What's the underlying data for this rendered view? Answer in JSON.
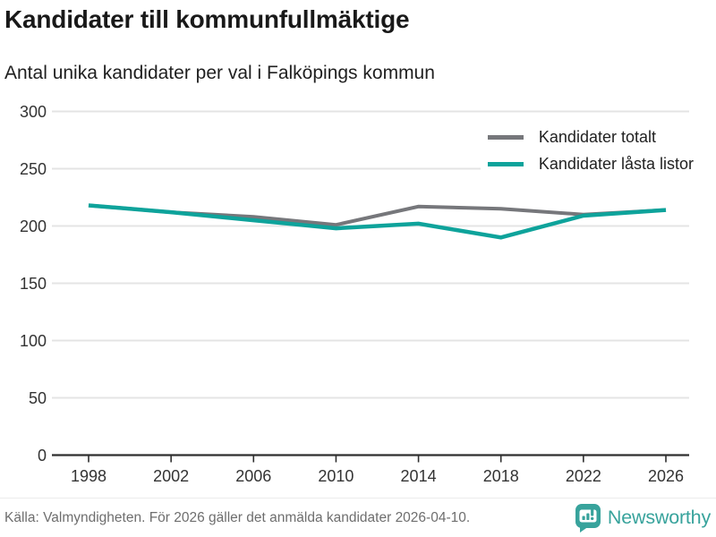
{
  "header": {
    "title": "Kandidater till kommunfullmäktige",
    "subtitle": "Antal unika kandidater per val i Falköpings kommun"
  },
  "chart_data": {
    "type": "line",
    "x": [
      "1998",
      "2002",
      "2006",
      "2010",
      "2014",
      "2018",
      "2022",
      "2026"
    ],
    "series": [
      {
        "name": "Kandidater totalt",
        "color": "#76777b",
        "values": [
          218,
          212,
          208,
          201,
          217,
          215,
          210,
          214
        ]
      },
      {
        "name": "Kandidater låsta listor",
        "color": "#0ea39b",
        "values": [
          218,
          212,
          205,
          198,
          202,
          190,
          209,
          214
        ]
      }
    ],
    "title": "Kandidater till kommunfullmäktige",
    "subtitle": "Antal unika kandidater per val i Falköpings kommun",
    "xlabel": "",
    "ylabel": "",
    "ylim": [
      0,
      300
    ],
    "yticks": [
      0,
      50,
      100,
      150,
      200,
      250,
      300
    ],
    "grid": true,
    "legend_position": "top-right"
  },
  "footer": {
    "source": "Källa: Valmyndigheten. För 2026 gäller det anmälda kandidater 2026-04-10.",
    "brand": "Newsworthy"
  },
  "colors": {
    "accent_teal": "#0ea39b",
    "line_gray": "#76777b",
    "brand_teal": "#38a39c",
    "grid": "#e4e4e4",
    "axis": "#2e2e2e",
    "tick_text": "#333333",
    "muted_text": "#6e6e6e"
  }
}
